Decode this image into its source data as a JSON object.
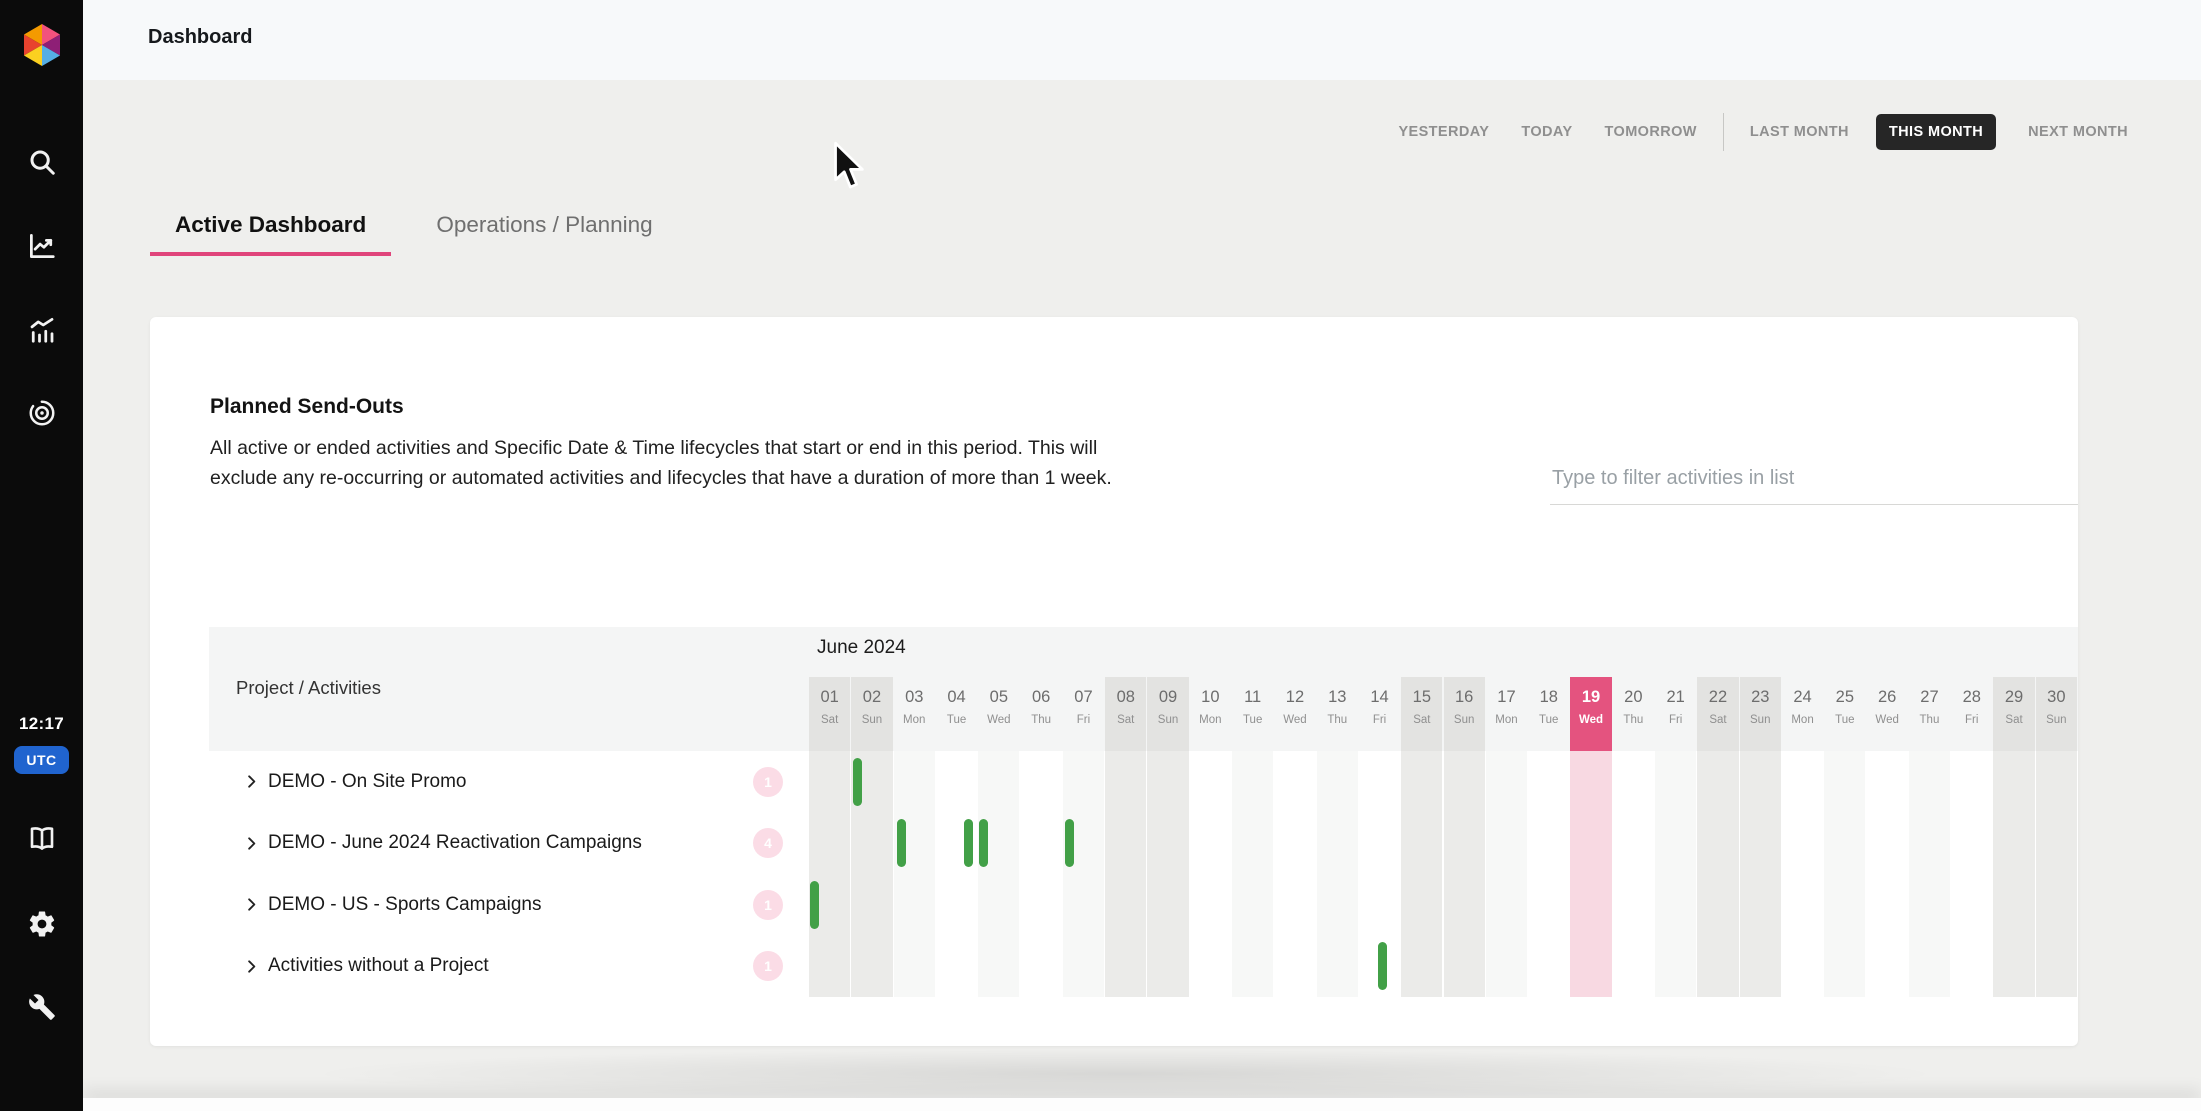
{
  "app": {
    "title": "Dashboard"
  },
  "sidebar": {
    "time": "12:17",
    "timezone": "UTC",
    "icons": [
      "logo",
      "search",
      "line-chart",
      "bar-chart",
      "target",
      "book",
      "settings",
      "wrench"
    ]
  },
  "toolbar": {
    "day_buttons": [
      "YESTERDAY",
      "TODAY",
      "TOMORROW"
    ],
    "month_buttons": [
      {
        "label": "LAST MONTH",
        "active": false
      },
      {
        "label": "THIS MONTH",
        "active": true
      },
      {
        "label": "NEXT MONTH",
        "active": false
      }
    ]
  },
  "tabs": [
    {
      "label": "Active Dashboard",
      "active": true
    },
    {
      "label": "Operations / Planning",
      "active": false
    }
  ],
  "panel": {
    "title": "Planned Send-Outs",
    "description": "All active or ended activities and Specific Date & Time lifecycles that start or end in this period. This will exclude any re-occurring or automated activities and lifecycles that have a duration of more than 1 week.",
    "filter_placeholder": "Type to filter activities in list"
  },
  "schedule": {
    "column_header": "Project / Activities",
    "month_label": "June 2024",
    "today": "19",
    "days": [
      {
        "n": "01",
        "d": "Sat"
      },
      {
        "n": "02",
        "d": "Sun"
      },
      {
        "n": "03",
        "d": "Mon"
      },
      {
        "n": "04",
        "d": "Tue"
      },
      {
        "n": "05",
        "d": "Wed"
      },
      {
        "n": "06",
        "d": "Thu"
      },
      {
        "n": "07",
        "d": "Fri"
      },
      {
        "n": "08",
        "d": "Sat"
      },
      {
        "n": "09",
        "d": "Sun"
      },
      {
        "n": "10",
        "d": "Mon"
      },
      {
        "n": "11",
        "d": "Tue"
      },
      {
        "n": "12",
        "d": "Wed"
      },
      {
        "n": "13",
        "d": "Thu"
      },
      {
        "n": "14",
        "d": "Fri"
      },
      {
        "n": "15",
        "d": "Sat"
      },
      {
        "n": "16",
        "d": "Sun"
      },
      {
        "n": "17",
        "d": "Mon"
      },
      {
        "n": "18",
        "d": "Tue"
      },
      {
        "n": "19",
        "d": "Wed"
      },
      {
        "n": "20",
        "d": "Thu"
      },
      {
        "n": "21",
        "d": "Fri"
      },
      {
        "n": "22",
        "d": "Sat"
      },
      {
        "n": "23",
        "d": "Sun"
      },
      {
        "n": "24",
        "d": "Mon"
      },
      {
        "n": "25",
        "d": "Tue"
      },
      {
        "n": "26",
        "d": "Wed"
      },
      {
        "n": "27",
        "d": "Thu"
      },
      {
        "n": "28",
        "d": "Fri"
      },
      {
        "n": "29",
        "d": "Sat"
      },
      {
        "n": "30",
        "d": "Sun"
      }
    ],
    "rows": [
      {
        "label": "DEMO - On Site Promo",
        "count": "1",
        "bars": [
          {
            "day": 2,
            "offset": 0.05
          }
        ]
      },
      {
        "label": "DEMO - June 2024 Reactivation Campaigns",
        "count": "4",
        "bars": [
          {
            "day": 3,
            "offset": 0.07
          },
          {
            "day": 4,
            "offset": 0.66
          },
          {
            "day": 5,
            "offset": 0.02
          },
          {
            "day": 7,
            "offset": 0.05
          }
        ]
      },
      {
        "label": "DEMO - US - Sports Campaigns",
        "count": "1",
        "bars": [
          {
            "day": 1,
            "offset": 0.02
          }
        ]
      },
      {
        "label": "Activities without a Project",
        "count": "1",
        "bars": [
          {
            "day": 14,
            "offset": 0.44
          }
        ]
      }
    ]
  },
  "colors": {
    "accent_pink": "#e0457b",
    "today_header": "#e4537f",
    "today_column": "#f8d9e2",
    "activity_green": "#42a047",
    "utc_blue": "#2064cf",
    "active_pill": "#262626"
  }
}
